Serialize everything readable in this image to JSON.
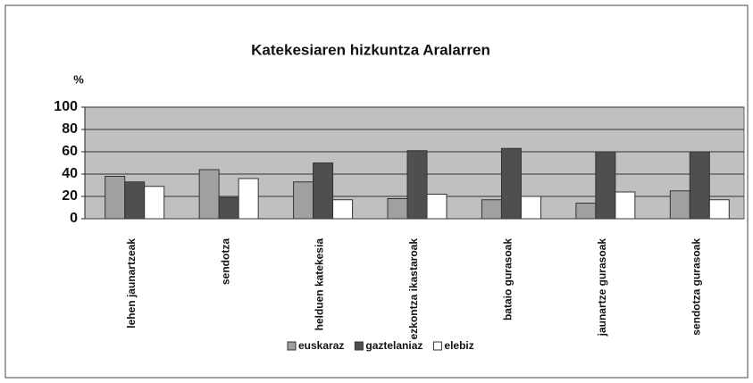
{
  "chart_data": {
    "type": "bar",
    "title": "Katekesiaren hizkuntza Aralarren",
    "ylabel": "%",
    "categories": [
      "lehen jaunartzeak",
      "sendotza",
      "helduen katekesia",
      "ezkontza ikastaroak",
      "bataio gurasoak",
      "jaunartze gurasoak",
      "sendotza gurasoak"
    ],
    "series": [
      {
        "name": "euskaraz",
        "color": "#a0a0a0",
        "values": [
          38,
          44,
          33,
          18,
          17,
          14,
          25
        ]
      },
      {
        "name": "gaztelaniaz",
        "color": "#4f4f4f",
        "values": [
          33,
          19,
          50,
          61,
          63,
          60,
          60
        ]
      },
      {
        "name": "elebiz",
        "color": "#ffffff",
        "values": [
          29,
          36,
          17,
          22,
          20,
          24,
          17
        ]
      }
    ],
    "ylim": [
      0,
      100
    ],
    "yticks": [
      0,
      20,
      40,
      60,
      80,
      100
    ],
    "grid": true,
    "legend": "bottom"
  }
}
